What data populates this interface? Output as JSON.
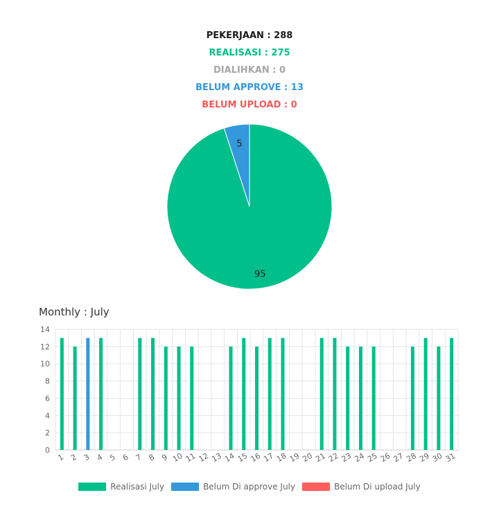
{
  "summary": {
    "total": "PEKERJAAN : 288",
    "realisasi": "REALISASI : 275",
    "dialihkan": "DIALIHKAN : 0",
    "belum_approve": "BELUM APPROVE : 13",
    "belum_upload": "BELUM UPLOAD : 0"
  },
  "colors": {
    "realisasi": "#00bf8a",
    "belum_approve": "#3498db",
    "belum_upload": "#ff5e5e",
    "grid": "#e6e6e6",
    "tick": "#666666"
  },
  "chart_data": [
    {
      "type": "pie",
      "slices": [
        {
          "value": 95,
          "label": "95",
          "color": "#00bf8a"
        },
        {
          "value": 5,
          "label": "5",
          "color": "#3498db"
        }
      ]
    },
    {
      "type": "bar",
      "title": "Monthly : July",
      "categories": [
        "1",
        "2",
        "3",
        "4",
        "5",
        "6",
        "7",
        "8",
        "9",
        "10",
        "11",
        "12",
        "13",
        "14",
        "15",
        "16",
        "17",
        "18",
        "19",
        "20",
        "21",
        "22",
        "23",
        "24",
        "25",
        "26",
        "27",
        "28",
        "29",
        "30",
        "31"
      ],
      "series": [
        {
          "name": "Realisasi July",
          "color": "#00bf8a",
          "values": [
            13,
            12,
            0,
            13,
            0,
            0,
            13,
            13,
            12,
            12,
            12,
            0,
            0,
            12,
            13,
            12,
            13,
            13,
            0,
            0,
            13,
            13,
            12,
            12,
            12,
            0,
            0,
            12,
            13,
            12,
            13
          ]
        },
        {
          "name": "Belum Di approve July",
          "color": "#3498db",
          "values": [
            0,
            0,
            13,
            0,
            0,
            0,
            0,
            0,
            0,
            0,
            0,
            0,
            0,
            0,
            0,
            0,
            0,
            0,
            0,
            0,
            0,
            0,
            0,
            0,
            0,
            0,
            0,
            0,
            0,
            0,
            0
          ]
        },
        {
          "name": "Belum Di upload July",
          "color": "#ff5e5e",
          "values": [
            0,
            0,
            0,
            0,
            0,
            0,
            0,
            0,
            0,
            0,
            0,
            0,
            0,
            0,
            0,
            0,
            0,
            0,
            0,
            0,
            0,
            0,
            0,
            0,
            0,
            0,
            0,
            0,
            0,
            0,
            0
          ]
        }
      ],
      "ylim": [
        0,
        14
      ],
      "yticks": [
        "0",
        "2",
        "4",
        "6",
        "8",
        "10",
        "12",
        "14"
      ],
      "grid": true,
      "legend": "bottom"
    }
  ]
}
